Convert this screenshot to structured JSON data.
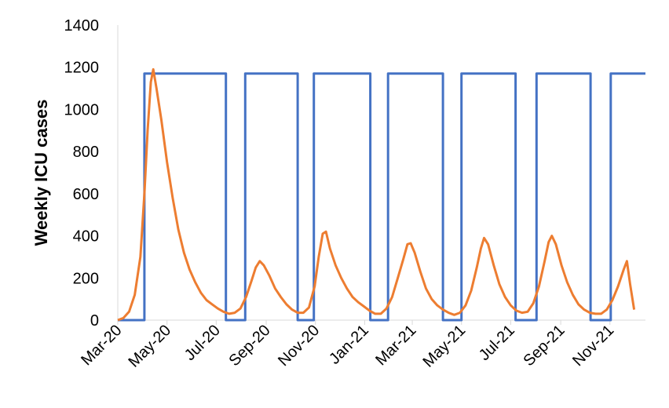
{
  "chart_data": {
    "type": "line",
    "title": "",
    "xlabel": "",
    "ylabel": "Weekly ICU cases",
    "ylim": [
      0,
      1400
    ],
    "yticks": [
      0,
      200,
      400,
      600,
      800,
      1000,
      1200,
      1400
    ],
    "xlim": [
      "2020-03-01",
      "2021-12-15"
    ],
    "xtick_labels": [
      "Mar-20",
      "May-20",
      "Jul-20",
      "Sep-20",
      "Nov-20",
      "Jan-21",
      "Mar-21",
      "May-21",
      "Jul-21",
      "Sep-21",
      "Nov-21"
    ],
    "xtick_dates": [
      "2020-03-01",
      "2020-05-01",
      "2020-07-01",
      "2020-09-01",
      "2020-11-01",
      "2021-01-01",
      "2021-03-01",
      "2021-05-01",
      "2021-07-01",
      "2021-09-01",
      "2021-11-01"
    ],
    "grid": false,
    "legend": "none",
    "series": [
      {
        "color": "#4472C4",
        "points": [
          [
            "2020-03-01",
            0
          ],
          [
            "2020-04-03",
            0
          ],
          [
            "2020-04-03",
            1170
          ],
          [
            "2020-07-13",
            1170
          ],
          [
            "2020-07-13",
            0
          ],
          [
            "2020-08-06",
            0
          ],
          [
            "2020-08-06",
            1170
          ],
          [
            "2020-10-10",
            1170
          ],
          [
            "2020-10-10",
            0
          ],
          [
            "2020-10-30",
            0
          ],
          [
            "2020-10-30",
            1170
          ],
          [
            "2021-01-08",
            1170
          ],
          [
            "2021-01-08",
            0
          ],
          [
            "2021-01-30",
            0
          ],
          [
            "2021-01-30",
            1170
          ],
          [
            "2021-04-08",
            1170
          ],
          [
            "2021-04-08",
            0
          ],
          [
            "2021-05-01",
            0
          ],
          [
            "2021-05-01",
            1170
          ],
          [
            "2021-07-07",
            1170
          ],
          [
            "2021-07-07",
            0
          ],
          [
            "2021-08-02",
            0
          ],
          [
            "2021-08-02",
            1170
          ],
          [
            "2021-10-08",
            1170
          ],
          [
            "2021-10-08",
            0
          ],
          [
            "2021-11-02",
            0
          ],
          [
            "2021-11-02",
            1170
          ],
          [
            "2021-12-15",
            1170
          ]
        ]
      },
      {
        "color": "#ED7D31",
        "points": [
          [
            "2020-03-01",
            0
          ],
          [
            "2020-03-08",
            10
          ],
          [
            "2020-03-15",
            40
          ],
          [
            "2020-03-22",
            120
          ],
          [
            "2020-03-29",
            300
          ],
          [
            "2020-04-03",
            600
          ],
          [
            "2020-04-07",
            900
          ],
          [
            "2020-04-11",
            1130
          ],
          [
            "2020-04-14",
            1190
          ],
          [
            "2020-04-18",
            1100
          ],
          [
            "2020-04-24",
            950
          ],
          [
            "2020-05-01",
            750
          ],
          [
            "2020-05-08",
            580
          ],
          [
            "2020-05-15",
            430
          ],
          [
            "2020-05-22",
            320
          ],
          [
            "2020-05-29",
            240
          ],
          [
            "2020-06-05",
            180
          ],
          [
            "2020-06-12",
            130
          ],
          [
            "2020-06-19",
            95
          ],
          [
            "2020-06-26",
            75
          ],
          [
            "2020-07-03",
            55
          ],
          [
            "2020-07-10",
            40
          ],
          [
            "2020-07-17",
            30
          ],
          [
            "2020-07-24",
            35
          ],
          [
            "2020-07-31",
            55
          ],
          [
            "2020-08-07",
            110
          ],
          [
            "2020-08-14",
            190
          ],
          [
            "2020-08-19",
            250
          ],
          [
            "2020-08-24",
            280
          ],
          [
            "2020-08-29",
            260
          ],
          [
            "2020-09-05",
            210
          ],
          [
            "2020-09-12",
            150
          ],
          [
            "2020-09-19",
            110
          ],
          [
            "2020-09-26",
            75
          ],
          [
            "2020-10-03",
            50
          ],
          [
            "2020-10-10",
            35
          ],
          [
            "2020-10-17",
            35
          ],
          [
            "2020-10-24",
            60
          ],
          [
            "2020-10-31",
            160
          ],
          [
            "2020-11-05",
            300
          ],
          [
            "2020-11-10",
            410
          ],
          [
            "2020-11-14",
            420
          ],
          [
            "2020-11-19",
            340
          ],
          [
            "2020-11-26",
            260
          ],
          [
            "2020-12-03",
            200
          ],
          [
            "2020-12-10",
            150
          ],
          [
            "2020-12-17",
            110
          ],
          [
            "2020-12-24",
            85
          ],
          [
            "2020-12-31",
            65
          ],
          [
            "2021-01-07",
            45
          ],
          [
            "2021-01-14",
            30
          ],
          [
            "2021-01-21",
            30
          ],
          [
            "2021-01-28",
            55
          ],
          [
            "2021-02-04",
            110
          ],
          [
            "2021-02-11",
            200
          ],
          [
            "2021-02-18",
            290
          ],
          [
            "2021-02-23",
            360
          ],
          [
            "2021-02-27",
            365
          ],
          [
            "2021-03-04",
            320
          ],
          [
            "2021-03-11",
            230
          ],
          [
            "2021-03-18",
            150
          ],
          [
            "2021-03-25",
            100
          ],
          [
            "2021-04-01",
            70
          ],
          [
            "2021-04-08",
            50
          ],
          [
            "2021-04-15",
            35
          ],
          [
            "2021-04-22",
            25
          ],
          [
            "2021-04-29",
            35
          ],
          [
            "2021-05-06",
            70
          ],
          [
            "2021-05-13",
            140
          ],
          [
            "2021-05-20",
            250
          ],
          [
            "2021-05-25",
            340
          ],
          [
            "2021-05-29",
            390
          ],
          [
            "2021-06-03",
            360
          ],
          [
            "2021-06-10",
            260
          ],
          [
            "2021-06-17",
            170
          ],
          [
            "2021-06-24",
            110
          ],
          [
            "2021-07-01",
            70
          ],
          [
            "2021-07-08",
            45
          ],
          [
            "2021-07-15",
            35
          ],
          [
            "2021-07-22",
            40
          ],
          [
            "2021-07-29",
            80
          ],
          [
            "2021-08-05",
            160
          ],
          [
            "2021-08-12",
            280
          ],
          [
            "2021-08-17",
            370
          ],
          [
            "2021-08-21",
            400
          ],
          [
            "2021-08-26",
            360
          ],
          [
            "2021-09-02",
            260
          ],
          [
            "2021-09-09",
            180
          ],
          [
            "2021-09-16",
            120
          ],
          [
            "2021-09-23",
            75
          ],
          [
            "2021-09-30",
            50
          ],
          [
            "2021-10-07",
            35
          ],
          [
            "2021-10-14",
            30
          ],
          [
            "2021-10-21",
            30
          ],
          [
            "2021-10-28",
            50
          ],
          [
            "2021-11-04",
            95
          ],
          [
            "2021-11-11",
            160
          ],
          [
            "2021-11-18",
            240
          ],
          [
            "2021-11-22",
            280
          ],
          [
            "2021-11-26",
            170
          ],
          [
            "2021-12-01",
            50
          ]
        ]
      }
    ]
  }
}
